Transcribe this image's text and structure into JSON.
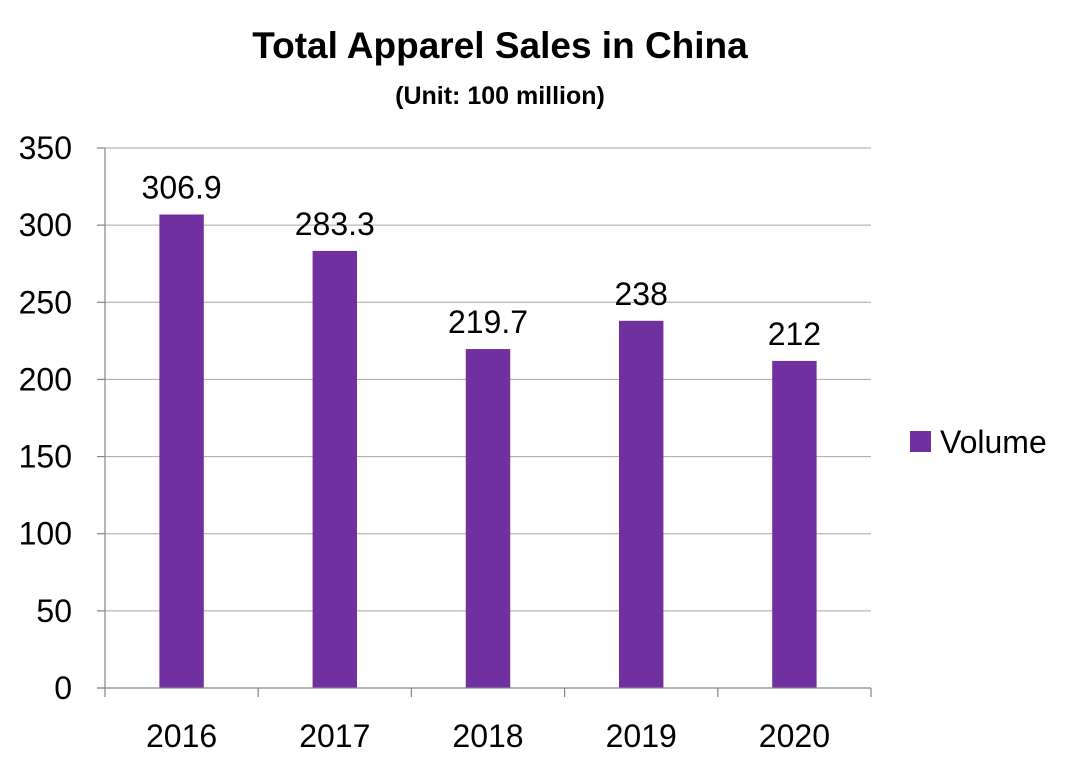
{
  "chart_data": {
    "type": "bar",
    "title": "Total Apparel Sales in China",
    "subtitle": "(Unit: 100 million)",
    "categories": [
      "2016",
      "2017",
      "2018",
      "2019",
      "2020"
    ],
    "series": [
      {
        "name": "Volume",
        "values": [
          306.9,
          283.3,
          219.7,
          238,
          212
        ],
        "color": "#7030a0"
      }
    ],
    "data_labels": [
      "306.9",
      "283.3",
      "219.7",
      "238",
      "212"
    ],
    "y_ticks": [
      "0",
      "50",
      "100",
      "150",
      "200",
      "250",
      "300",
      "350"
    ],
    "ylim": [
      0,
      350
    ],
    "grid": true,
    "legend_position": "right"
  }
}
